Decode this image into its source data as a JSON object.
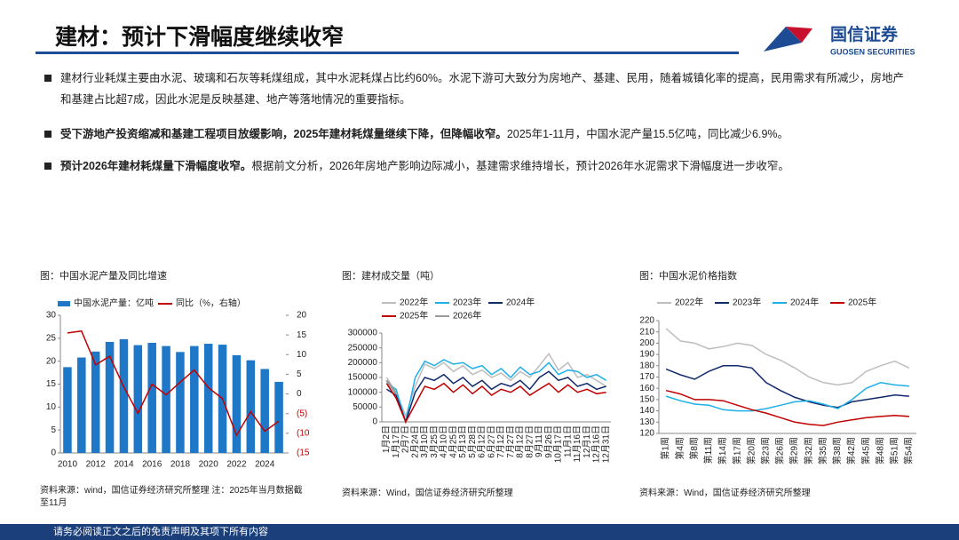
{
  "header": {
    "title": "建材：预计下滑幅度继续收窄",
    "logo_cn": "国信证券",
    "logo_en": "GUOSEN SECURITIES"
  },
  "bullets": [
    {
      "text": "建材行业耗煤主要由水泥、玻璃和石灰等耗煤组成，其中水泥耗煤占比约60%。水泥下游可大致分为房地产、基建、民用，随着城镇化率的提高，民用需求有所减少，房地产和基建占比超7成，因此水泥是反映基建、地产等落地情况的重要指标。"
    },
    {
      "bold": "受下游地产投资缩减和基建工程项目放缓影响，2025年建材耗煤量继续下降，但降幅收窄。",
      "text": "2025年1-11月，中国水泥产量15.5亿吨，同比减少6.9%。"
    },
    {
      "bold": "预计2026年建材耗煤量下滑幅度收窄。",
      "text": "根据前文分析，2026年房地产影响边际减小，基建需求维持增长，预计2026年水泥需求下滑幅度进一步收窄。"
    }
  ],
  "chart_data": [
    {
      "type": "combo",
      "title": "图：中国水泥产量及同比增速",
      "source": "资料来源：wind，国信证券经济研究所整理 注：2025年当月数据截至11月",
      "categories": [
        "2010",
        null,
        "2012",
        null,
        "2014",
        null,
        "2016",
        null,
        "2018",
        null,
        "2020",
        null,
        "2022",
        null,
        "2024",
        null
      ],
      "series": [
        {
          "name": "中国水泥产量：亿吨",
          "type": "bar",
          "color": "#1f77c8",
          "values": [
            18.7,
            20.8,
            22.1,
            24.2,
            24.8,
            23.5,
            24.0,
            23.3,
            22.0,
            23.3,
            23.8,
            23.6,
            21.3,
            20.2,
            18.3,
            15.5
          ]
        },
        {
          "name": "同比（%，右轴）",
          "type": "line",
          "axis": "y2",
          "color": "#c00000",
          "values": [
            15.5,
            16,
            7.4,
            9.6,
            1.8,
            -4.9,
            2.5,
            -0.2,
            3,
            6.1,
            1.6,
            -1.2,
            -10.5,
            -4.5,
            -9.5,
            -6.9
          ]
        }
      ],
      "ylim": [
        0,
        30
      ],
      "yticks": [
        0,
        5,
        10,
        15,
        20,
        25,
        30
      ],
      "y2lim": [
        -15,
        20
      ],
      "y2ticks": [
        {
          "value": -15,
          "label": "(15)"
        },
        {
          "value": -10,
          "label": "(10)"
        },
        {
          "value": -5,
          "label": "(5)"
        },
        0,
        5,
        10,
        15,
        20
      ]
    },
    {
      "type": "line",
      "title": "图：建材成交量（吨）",
      "source": "资料来源：Wind，国信证券经济研究所整理",
      "categories": [
        "1月2日",
        "1月17日",
        "2月7日",
        "2月24日",
        "3月10日",
        "3月25日",
        "4月10日",
        "4月25日",
        "5月13日",
        "5月28日",
        "6月12日",
        "6月27日",
        "7月12日",
        "7月27日",
        "8月12日",
        "8月27日",
        "9月11日",
        "9月26日",
        "10月17日",
        "11月1日",
        "11月16日",
        "12月1日",
        "12月16日",
        "12月31日"
      ],
      "series": [
        {
          "name": "2022年",
          "color": "#bdbdbd",
          "values": [
            150000,
            100000,
            20000,
            120000,
            195000,
            180000,
            200000,
            170000,
            190000,
            160000,
            175000,
            150000,
            165000,
            140000,
            170000,
            150000,
            190000,
            230000,
            175000,
            200000,
            150000,
            160000,
            140000,
            120000
          ]
        },
        {
          "name": "2023年",
          "color": "#1fb0e8",
          "values": [
            130000,
            110000,
            0,
            150000,
            205000,
            190000,
            210000,
            195000,
            200000,
            180000,
            190000,
            160000,
            180000,
            150000,
            185000,
            160000,
            170000,
            200000,
            160000,
            175000,
            170000,
            150000,
            160000,
            140000
          ]
        },
        {
          "name": "2024年",
          "color": "#102a6b",
          "values": [
            110000,
            90000,
            0,
            100000,
            150000,
            140000,
            160000,
            130000,
            150000,
            120000,
            140000,
            110000,
            130000,
            120000,
            140000,
            110000,
            150000,
            170000,
            140000,
            150000,
            120000,
            130000,
            110000,
            120000
          ]
        },
        {
          "name": "2025年",
          "color": "#c00000",
          "values": [
            130000,
            80000,
            0,
            60000,
            120000,
            110000,
            130000,
            100000,
            125000,
            95000,
            120000,
            90000,
            110000,
            100000,
            120000,
            90000,
            110000,
            130000,
            100000,
            125000,
            100000,
            110000,
            95000,
            100000
          ]
        },
        {
          "name": "2026年",
          "color": "#9a9a9a",
          "values": [
            140000,
            95000,
            null,
            null,
            null,
            null,
            null,
            null,
            null,
            null,
            null,
            null,
            null,
            null,
            null,
            null,
            null,
            null,
            null,
            null,
            null,
            null,
            null,
            null
          ]
        }
      ],
      "ylim": [
        0,
        300000
      ],
      "yticks": [
        0,
        50000,
        100000,
        150000,
        200000,
        250000,
        300000
      ]
    },
    {
      "type": "line",
      "title": "图：中国水泥价格指数",
      "source": "资料来源：Wind，国信证券经济研究所整理",
      "categories": [
        "第1周",
        "第4周",
        "第8周",
        "第11周",
        "第14周",
        "第17周",
        "第20周",
        "第23周",
        "第26周",
        "第29周",
        "第32周",
        "第35周",
        "第38周",
        "第42周",
        "第45周",
        "第48周",
        "第51周",
        "第54周"
      ],
      "series": [
        {
          "name": "2022年",
          "color": "#bdbdbd",
          "values": [
            213,
            202,
            200,
            195,
            197,
            200,
            198,
            190,
            185,
            178,
            170,
            165,
            163,
            165,
            175,
            180,
            184,
            178
          ]
        },
        {
          "name": "2023年",
          "color": "#102a6b",
          "values": [
            177,
            172,
            168,
            175,
            180,
            180,
            178,
            165,
            158,
            152,
            148,
            145,
            143,
            148,
            150,
            152,
            154,
            153
          ]
        },
        {
          "name": "2024年",
          "color": "#1fb0e8",
          "values": [
            153,
            149,
            146,
            145,
            141,
            140,
            140,
            142,
            145,
            148,
            149,
            146,
            142,
            150,
            160,
            165,
            163,
            162
          ]
        },
        {
          "name": "2025年",
          "color": "#c00000",
          "values": [
            158,
            155,
            150,
            150,
            149,
            145,
            141,
            138,
            134,
            130,
            128,
            127,
            130,
            132,
            134,
            135,
            136,
            135
          ]
        }
      ],
      "ylim": [
        120,
        220
      ],
      "yticks": [
        120,
        130,
        140,
        150,
        160,
        170,
        180,
        190,
        200,
        210,
        220
      ]
    }
  ],
  "footer": "请务必阅读正文之后的免责声明及其项下所有内容"
}
